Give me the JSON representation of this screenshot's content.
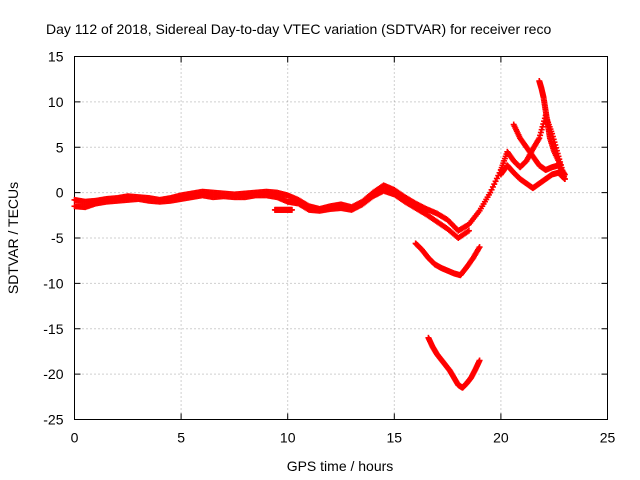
{
  "chart_data": {
    "type": "scatter",
    "title": "Day 112 of 2018, Sidereal Day-to-day VTEC variation (SDTVAR) for receiver reco",
    "xlabel": "GPS time / hours",
    "ylabel": "SDTVAR / TECUs",
    "xlim": [
      0,
      25
    ],
    "ylim": [
      -25,
      15
    ],
    "xticks": [
      "0",
      "5",
      "10",
      "15",
      "20",
      "25"
    ],
    "yticks": [
      "15",
      "10",
      "5",
      "0",
      "-5",
      "-10",
      "-15",
      "-20",
      "-25"
    ],
    "grid": true,
    "marker": "plus",
    "color": "#ff0000",
    "series": [
      {
        "name": "main-band",
        "x": [
          0.0,
          0.5,
          1.0,
          1.5,
          2.0,
          2.5,
          3.0,
          3.5,
          4.0,
          4.5,
          5.0,
          5.5,
          6.0,
          6.5,
          7.0,
          7.5,
          8.0,
          8.5,
          9.0,
          9.5,
          10.0,
          10.5,
          11.0,
          11.5,
          12.0,
          12.5,
          13.0,
          13.5,
          14.0,
          14.5,
          15.0,
          15.5,
          16.0,
          16.5,
          17.0,
          17.5,
          18.0,
          18.5,
          19.0,
          19.5,
          20.0
        ],
        "y": [
          -0.8,
          -1.0,
          -0.9,
          -0.7,
          -0.6,
          -0.4,
          -0.5,
          -0.6,
          -0.8,
          -0.6,
          -0.3,
          -0.1,
          0.1,
          0.0,
          -0.1,
          -0.2,
          -0.1,
          0.0,
          0.1,
          0.0,
          -0.3,
          -0.8,
          -1.5,
          -1.8,
          -1.5,
          -1.3,
          -1.6,
          -1.0,
          0.0,
          0.8,
          0.3,
          -0.5,
          -1.2,
          -1.8,
          -2.3,
          -3.0,
          -4.2,
          -3.5,
          -2.0,
          0.0,
          2.5
        ]
      },
      {
        "name": "main-band-lower",
        "x": [
          0.0,
          0.5,
          1.0,
          1.5,
          2.0,
          2.5,
          3.0,
          3.5,
          4.0,
          4.5,
          5.0,
          5.5,
          6.0,
          6.5,
          7.0,
          7.5,
          8.0,
          8.5,
          9.0,
          9.5,
          10.0,
          10.5,
          11.0,
          11.5,
          12.0,
          12.5,
          13.0,
          13.5,
          14.0,
          14.5,
          15.0,
          15.5,
          16.0,
          16.5,
          17.0,
          17.5,
          18.0,
          18.5
        ],
        "y": [
          -1.5,
          -1.6,
          -1.2,
          -1.0,
          -0.9,
          -0.8,
          -0.7,
          -0.9,
          -1.0,
          -0.9,
          -0.7,
          -0.5,
          -0.3,
          -0.5,
          -0.4,
          -0.5,
          -0.5,
          -0.3,
          -0.3,
          -0.5,
          -1.0,
          -1.2,
          -1.9,
          -2.0,
          -1.8,
          -1.7,
          -1.9,
          -1.3,
          -0.4,
          0.2,
          -0.2,
          -1.0,
          -1.7,
          -2.4,
          -3.2,
          -4.0,
          -5.0,
          -4.2
        ]
      },
      {
        "name": "offset-gap",
        "x": [
          9.4,
          9.6,
          9.8,
          10.0,
          10.2
        ],
        "y": [
          -1.9,
          -1.9,
          -1.9,
          -1.9,
          -1.9
        ]
      },
      {
        "name": "mid-dip",
        "x": [
          16.0,
          16.3,
          16.6,
          16.9,
          17.2,
          17.5,
          17.8,
          18.1,
          18.4,
          18.7,
          19.0
        ],
        "y": [
          -5.6,
          -6.3,
          -7.2,
          -7.9,
          -8.3,
          -8.6,
          -8.9,
          -9.1,
          -8.2,
          -7.2,
          -6.0
        ]
      },
      {
        "name": "deep-dip",
        "x": [
          16.6,
          16.8,
          17.0,
          17.2,
          17.4,
          17.6,
          17.8,
          18.0,
          18.2,
          18.4,
          18.6,
          18.8,
          19.0
        ],
        "y": [
          -16.0,
          -17.0,
          -17.8,
          -18.4,
          -19.0,
          -19.6,
          -20.4,
          -21.2,
          -21.5,
          -21.0,
          -20.4,
          -19.5,
          -18.5
        ]
      },
      {
        "name": "post-20-a",
        "x": [
          20.0,
          20.3,
          20.6,
          20.9,
          21.2,
          21.5,
          21.8,
          22.1,
          22.4,
          22.7,
          23.0
        ],
        "y": [
          2.5,
          4.5,
          3.5,
          2.8,
          3.5,
          4.8,
          6.0,
          8.5,
          6.5,
          4.0,
          1.5
        ]
      },
      {
        "name": "post-20-b",
        "x": [
          20.0,
          20.3,
          20.6,
          20.9,
          21.2,
          21.5,
          21.8,
          22.1,
          22.4,
          22.7,
          23.0
        ],
        "y": [
          2.0,
          3.0,
          2.2,
          1.5,
          1.0,
          0.5,
          1.0,
          1.5,
          2.0,
          2.2,
          1.5
        ]
      },
      {
        "name": "post-20-c",
        "x": [
          20.6,
          20.9,
          21.2,
          21.5,
          21.8,
          22.1,
          22.4,
          22.7,
          23.0
        ],
        "y": [
          7.5,
          6.0,
          5.0,
          4.0,
          3.0,
          2.5,
          2.8,
          3.0,
          2.0
        ]
      },
      {
        "name": "spike",
        "x": [
          21.8,
          21.9,
          22.0,
          22.1,
          22.2,
          22.3,
          22.5,
          22.8
        ],
        "y": [
          12.3,
          11.5,
          10.5,
          9.0,
          7.5,
          6.0,
          4.5,
          3.0
        ]
      }
    ]
  }
}
